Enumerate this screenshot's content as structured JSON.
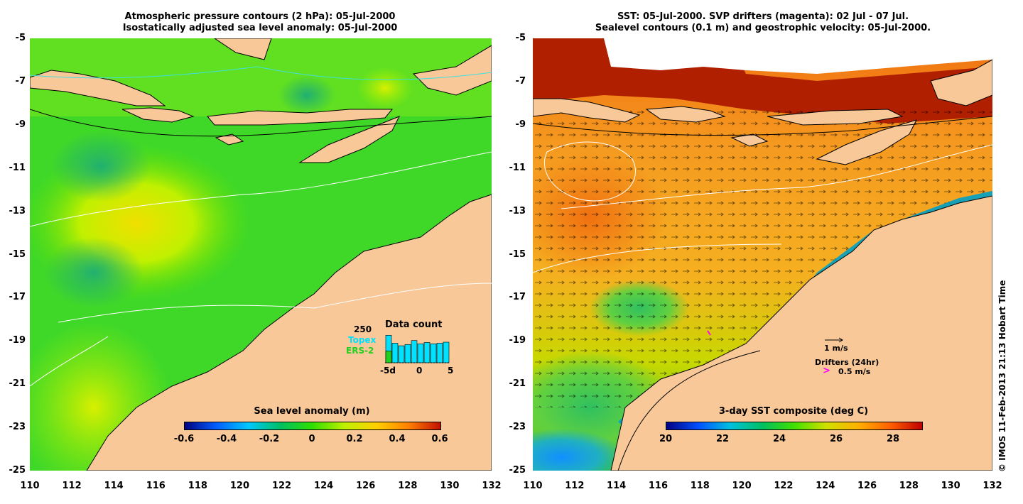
{
  "left_panel": {
    "title_line1": "Atmospheric pressure contours (2 hPa): 05-Jul-2000",
    "title_line2": "Isostatically adjusted sea level anomaly: 05-Jul-2000",
    "colorbar": {
      "title": "Sea level anomaly (m)",
      "ticks": [
        "-0.6",
        "-0.4",
        "-0.2",
        "0",
        "0.2",
        "0.4",
        "0.6"
      ],
      "gradient": [
        "#000080",
        "#0060ff",
        "#00c8ff",
        "#00c060",
        "#30e000",
        "#c0f000",
        "#ffd000",
        "#ff8000",
        "#c01000"
      ]
    },
    "data_count": {
      "title": "Data count",
      "max_label": "250",
      "series1": "Topex",
      "series2": "ERS-2",
      "series1_color": "#00e0ff",
      "series2_color": "#20d020",
      "x_labels": [
        "-5d",
        "0",
        "5"
      ],
      "bars_topex_fraction": [
        0.84,
        0.6,
        0.52,
        0.56,
        0.68,
        0.58,
        0.62,
        0.58,
        0.6,
        0.63
      ],
      "bar_ers2_fraction": 0.36
    }
  },
  "right_panel": {
    "title_line1": "SST: 05-Jul-2000. SVP drifters (magenta): 02 Jul - 07 Jul.",
    "title_line2": "Sealevel contours (0.1 m) and geostrophic velocity: 05-Jul-2000.",
    "colorbar": {
      "title": "3-day SST composite (deg C)",
      "ticks": [
        "20",
        "22",
        "24",
        "26",
        "28"
      ],
      "gradient": [
        "#000080",
        "#0050ff",
        "#00c0e0",
        "#00c060",
        "#40e000",
        "#d0e000",
        "#ffb000",
        "#ff6000",
        "#c00000"
      ]
    },
    "legend": {
      "vector_label": "1 m/s",
      "drifters_label": "Drifters (24hr)",
      "drifter_speed": "0.5 m/s"
    }
  },
  "axes": {
    "y_ticks": [
      "-5",
      "-7",
      "-9",
      "-11",
      "-13",
      "-15",
      "-17",
      "-19",
      "-21",
      "-23",
      "-25"
    ],
    "x_ticks": [
      "110",
      "112",
      "114",
      "116",
      "118",
      "120",
      "122",
      "124",
      "126",
      "128",
      "130",
      "132"
    ]
  },
  "colors": {
    "land": "#f8c898",
    "ocean_left": "#30d020",
    "ocean_right": "#f0a020"
  },
  "copyright": "© IMOS 11-Feb-2013 21:13 Hobart Time"
}
